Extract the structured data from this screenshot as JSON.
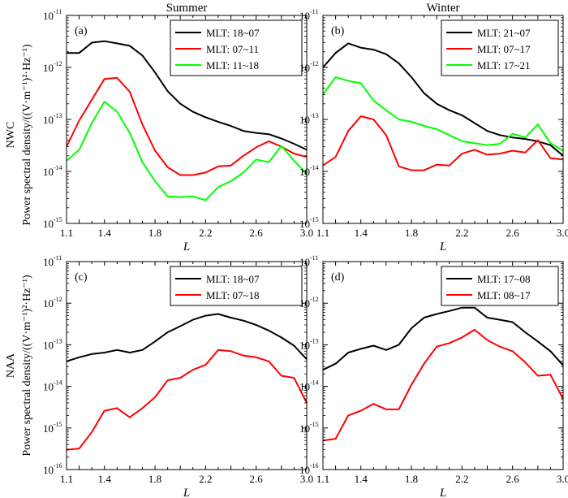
{
  "figure": {
    "column_titles": [
      "Summer",
      "Winter"
    ],
    "row_labels": [
      "NWC",
      "NAA"
    ],
    "ylabel": "Power spectral density/((V·m⁻¹)²·Hz⁻¹)",
    "xlabel": "L"
  },
  "chart_data": [
    {
      "type": "line",
      "panel": "(a)",
      "column": "Summer",
      "row": "NWC",
      "xlabel": "L",
      "ylabel": "Power spectral density/((V·m⁻¹)²·Hz⁻¹)",
      "yscale": "log",
      "xlim": [
        1.1,
        3.0
      ],
      "ylim_exp": [
        -15,
        -11
      ],
      "xticks": [
        "1.1",
        "1.4",
        "1.8",
        "2.2",
        "2.6",
        "3.0"
      ],
      "yticks_exp": [
        -15,
        -14,
        -13,
        -12,
        -11
      ],
      "x": [
        1.1,
        1.2,
        1.3,
        1.4,
        1.5,
        1.6,
        1.7,
        1.8,
        1.9,
        2.0,
        2.1,
        2.2,
        2.3,
        2.4,
        2.5,
        2.6,
        2.7,
        2.8,
        2.9,
        3.0
      ],
      "series": [
        {
          "name": "MLT: 18~07",
          "color": "#000000",
          "values": [
            1.9e-12,
            1.9e-12,
            3e-12,
            3.2e-12,
            2.9e-12,
            2.6e-12,
            1.7e-12,
            8e-13,
            3.5e-13,
            2e-13,
            1.4e-13,
            1.1e-13,
            9e-14,
            7.5e-14,
            6e-14,
            5.5e-14,
            5.2e-14,
            4.3e-14,
            3.4e-14,
            2.6e-14
          ]
        },
        {
          "name": "MLT: 07~11",
          "color": "#ff0000",
          "values": [
            3e-14,
            9.5e-14,
            2.4e-13,
            6e-13,
            6.3e-13,
            3.4e-13,
            8e-14,
            2.5e-14,
            1.2e-14,
            8.5e-15,
            8.5e-15,
            9.5e-15,
            1.25e-14,
            1.3e-14,
            2e-14,
            2.9e-14,
            3.8e-14,
            3e-14,
            2.2e-14,
            1.9e-14
          ]
        },
        {
          "name": "MLT: 11~18",
          "color": "#00ff00",
          "values": [
            1.6e-14,
            2.6e-14,
            8.5e-14,
            2.2e-13,
            1.4e-13,
            5.5e-14,
            1.5e-14,
            6.5e-15,
            3.3e-15,
            3.2e-15,
            3.3e-15,
            2.8e-15,
            5e-15,
            6.5e-15,
            9.5e-15,
            1.7e-14,
            1.5e-14,
            3.1e-14,
            1.6e-14,
            9e-15
          ]
        }
      ]
    },
    {
      "type": "line",
      "panel": "(b)",
      "column": "Winter",
      "row": "NWC",
      "xlabel": "L",
      "ylabel": "",
      "yscale": "log",
      "xlim": [
        1.1,
        3.0
      ],
      "ylim_exp": [
        -15,
        -11
      ],
      "xticks": [
        "1.1",
        "1.4",
        "1.8",
        "2.2",
        "2.6",
        "3.0"
      ],
      "yticks_exp": [
        -15,
        -14,
        -13,
        -12,
        -11
      ],
      "x": [
        1.1,
        1.2,
        1.3,
        1.4,
        1.5,
        1.6,
        1.7,
        1.8,
        1.9,
        2.0,
        2.1,
        2.2,
        2.3,
        2.4,
        2.5,
        2.6,
        2.7,
        2.8,
        2.9,
        3.0
      ],
      "series": [
        {
          "name": "MLT: 21~07",
          "color": "#000000",
          "values": [
            1e-12,
            1.9e-12,
            2.9e-12,
            2.4e-12,
            2.2e-12,
            1.8e-12,
            1.2e-12,
            6.5e-13,
            3.2e-13,
            2e-13,
            1.5e-13,
            1.2e-13,
            8.5e-14,
            6e-14,
            5e-14,
            4.5e-14,
            4.2e-14,
            3.8e-14,
            3.2e-14,
            2e-14
          ]
        },
        {
          "name": "MLT: 07~17",
          "color": "#ff0000",
          "values": [
            1.3e-14,
            1.9e-14,
            6e-14,
            1.15e-13,
            1e-13,
            5e-14,
            1.25e-14,
            1.05e-14,
            1.05e-14,
            1.35e-14,
            1.3e-14,
            2.2e-14,
            2.6e-14,
            2.1e-14,
            2.2e-14,
            2.5e-14,
            2.3e-14,
            4e-14,
            1.8e-14,
            1.7e-14
          ]
        },
        {
          "name": "MLT: 17~21",
          "color": "#00ff00",
          "values": [
            3e-13,
            6.5e-13,
            5.5e-13,
            5e-13,
            2.3e-13,
            1.5e-13,
            1e-13,
            9e-14,
            7.5e-14,
            6.5e-14,
            5e-14,
            3.8e-14,
            3.5e-14,
            3.2e-14,
            3.4e-14,
            5.3e-14,
            4.5e-14,
            8e-14,
            3.5e-14,
            2.5e-14
          ]
        }
      ]
    },
    {
      "type": "line",
      "panel": "(c)",
      "column": "Summer",
      "row": "NAA",
      "xlabel": "L",
      "ylabel": "Power spectral density/((V·m⁻¹)²·Hz⁻¹)",
      "yscale": "log",
      "xlim": [
        1.1,
        3.0
      ],
      "ylim_exp": [
        -16,
        -11
      ],
      "xticks": [
        "1.1",
        "1.4",
        "1.8",
        "2.2",
        "2.6",
        "3.0"
      ],
      "yticks_exp": [
        -16,
        -15,
        -14,
        -13,
        -12,
        -11
      ],
      "x": [
        1.1,
        1.2,
        1.3,
        1.4,
        1.5,
        1.6,
        1.7,
        1.8,
        1.9,
        2.0,
        2.1,
        2.2,
        2.3,
        2.4,
        2.5,
        2.6,
        2.7,
        2.8,
        2.9,
        3.0
      ],
      "series": [
        {
          "name": "MLT: 18~07",
          "color": "#000000",
          "values": [
            4e-14,
            5e-14,
            6e-14,
            6.5e-14,
            7.5e-14,
            6.5e-14,
            7.5e-14,
            1.2e-13,
            2e-13,
            2.8e-13,
            4e-13,
            5e-13,
            5.5e-13,
            4.5e-13,
            3.8e-13,
            3e-13,
            2.2e-13,
            1.5e-13,
            9.5e-14,
            4.5e-14
          ]
        },
        {
          "name": "MLT: 07~18",
          "color": "#ff0000",
          "values": [
            3e-16,
            3.2e-16,
            8e-16,
            2.6e-15,
            3e-15,
            1.8e-15,
            3e-15,
            5.5e-15,
            1.4e-14,
            1.6e-14,
            2.5e-14,
            3.3e-14,
            7.5e-14,
            7e-14,
            5.5e-14,
            5e-14,
            4e-14,
            1.8e-14,
            1.6e-14,
            4e-15
          ]
        }
      ]
    },
    {
      "type": "line",
      "panel": "(d)",
      "column": "Winter",
      "row": "NAA",
      "xlabel": "L",
      "ylabel": "",
      "yscale": "log",
      "xlim": [
        1.1,
        3.0
      ],
      "ylim_exp": [
        -16,
        -11
      ],
      "xticks": [
        "1.1",
        "1.4",
        "1.8",
        "2.2",
        "2.6",
        "3.0"
      ],
      "yticks_exp": [
        -16,
        -15,
        -14,
        -13,
        -12,
        -11
      ],
      "x": [
        1.1,
        1.2,
        1.3,
        1.4,
        1.5,
        1.6,
        1.7,
        1.8,
        1.9,
        2.0,
        2.1,
        2.2,
        2.3,
        2.4,
        2.5,
        2.6,
        2.7,
        2.8,
        2.9,
        3.0
      ],
      "series": [
        {
          "name": "MLT: 17~08",
          "color": "#000000",
          "values": [
            2.5e-14,
            3.5e-14,
            6.5e-14,
            8e-14,
            9.5e-14,
            7.5e-14,
            1e-13,
            2.5e-13,
            4.5e-13,
            5.5e-13,
            6.5e-13,
            7.8e-13,
            7.8e-13,
            4.5e-13,
            4e-13,
            3.5e-13,
            2e-13,
            1.2e-13,
            7e-14,
            3.2e-14
          ]
        },
        {
          "name": "MLT: 08~17",
          "color": "#ff0000",
          "values": [
            5e-16,
            5.5e-16,
            2e-15,
            2.6e-15,
            3.8e-15,
            2.8e-15,
            2.8e-15,
            1.1e-14,
            3.5e-14,
            9e-14,
            1.1e-13,
            1.5e-13,
            2.3e-13,
            1.3e-13,
            9e-14,
            7e-14,
            3.8e-14,
            1.8e-14,
            1.9e-14,
            5e-15
          ]
        }
      ]
    }
  ]
}
